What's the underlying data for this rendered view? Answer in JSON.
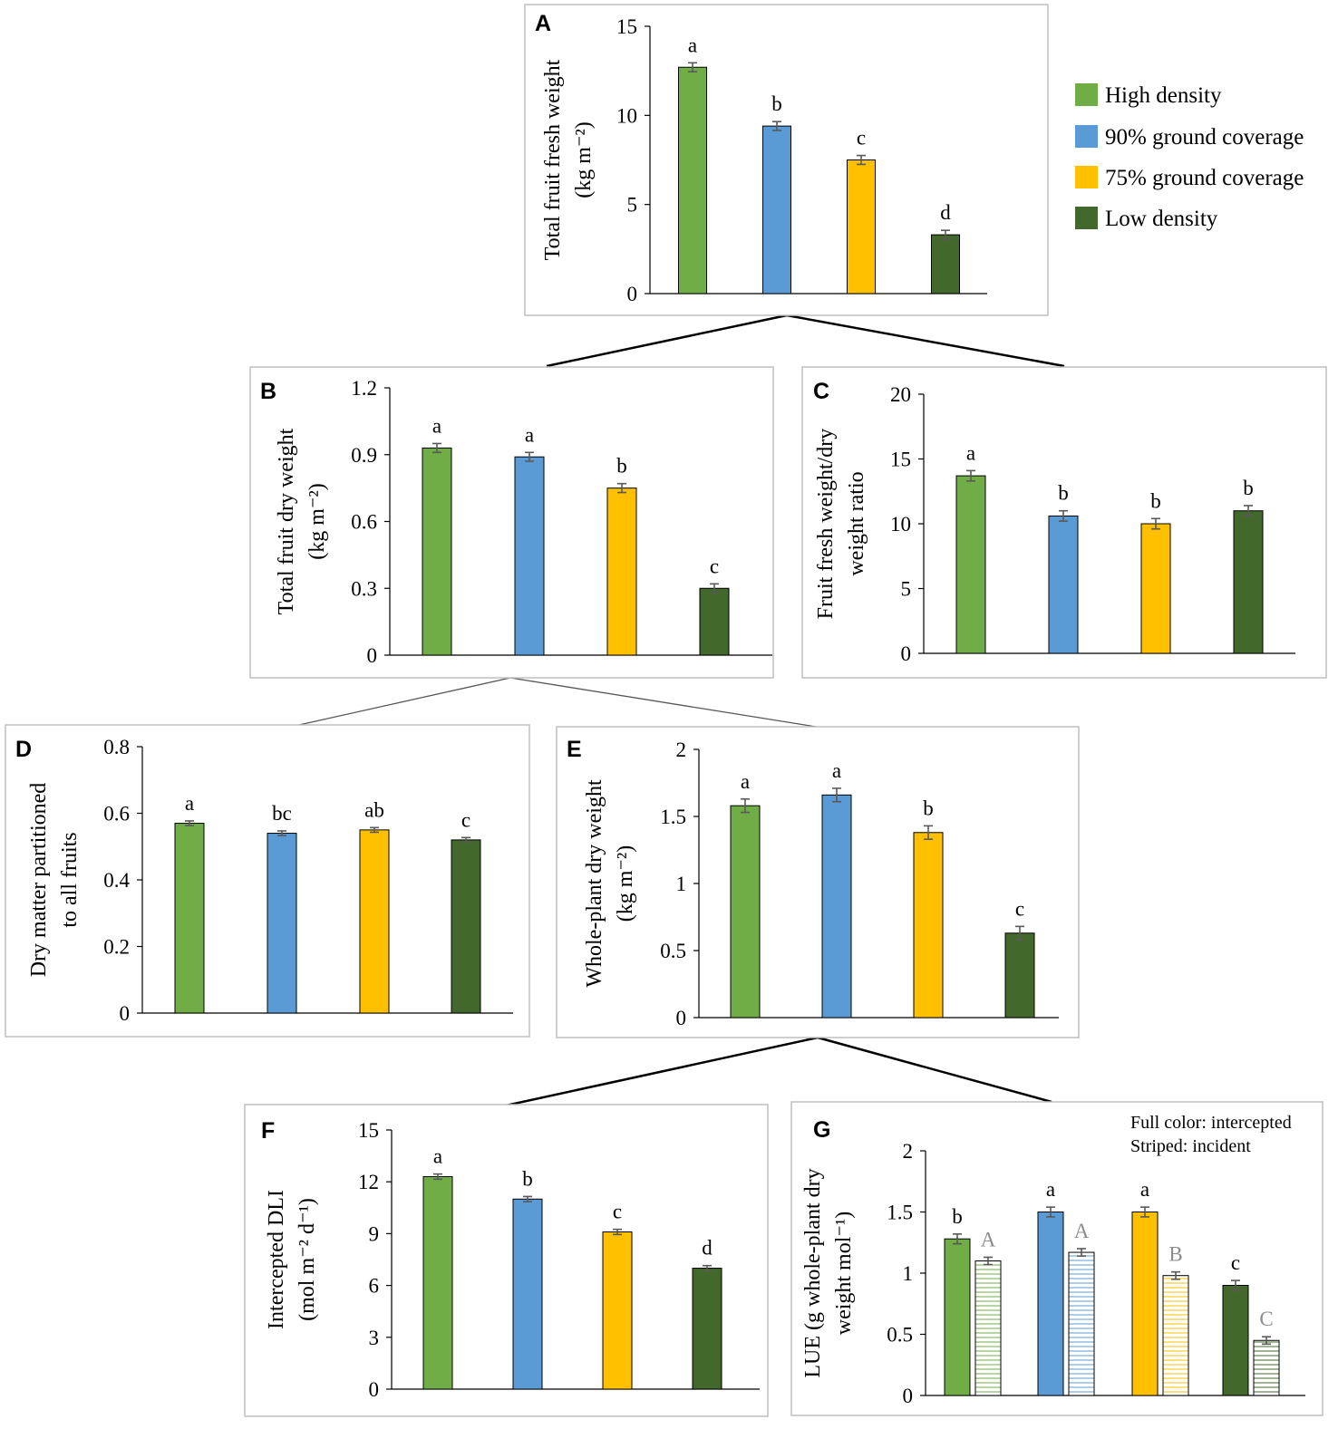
{
  "colors": {
    "high_density": "#70ad47",
    "ground_90": "#5b9bd5",
    "ground_75": "#ffc000",
    "low_density": "#43682b",
    "error_bar": "#595959",
    "axis": "#000000",
    "panel_border": "#bfbfbf",
    "letter_incident": "#8c8c8c"
  },
  "legend": {
    "items": [
      {
        "name": "High density",
        "color": "#70ad47"
      },
      {
        "name": "90% ground coverage",
        "color": "#5b9bd5"
      },
      {
        "name": "75% ground coverage",
        "color": "#ffc000"
      },
      {
        "name": "Low density",
        "color": "#43682b"
      }
    ]
  },
  "chart_data": [
    {
      "panel": "A",
      "type": "bar",
      "categories": [
        "High density",
        "90% ground coverage",
        "75% ground coverage",
        "Low density"
      ],
      "ylabel": [
        "Total fruit fresh weight",
        "(kg m⁻²)"
      ],
      "ylim": [
        0,
        15
      ],
      "yticks": [
        "0",
        "5",
        "10",
        "15"
      ],
      "ytick_values": [
        0,
        5,
        10,
        15
      ],
      "values": [
        12.7,
        9.4,
        7.5,
        3.3
      ],
      "errors": [
        0.25,
        0.25,
        0.25,
        0.25
      ],
      "letters": [
        "a",
        "b",
        "c",
        "d"
      ]
    },
    {
      "panel": "B",
      "type": "bar",
      "categories": [
        "High density",
        "90% ground coverage",
        "75% ground coverage",
        "Low density"
      ],
      "ylabel": [
        "Total fruit dry weight",
        "(kg m⁻²)"
      ],
      "ylim": [
        0,
        1.2
      ],
      "yticks": [
        "0",
        "0.3",
        "0.6",
        "0.9",
        "1.2"
      ],
      "ytick_values": [
        0,
        0.3,
        0.6,
        0.9,
        1.2
      ],
      "values": [
        0.93,
        0.89,
        0.75,
        0.3
      ],
      "errors": [
        0.02,
        0.02,
        0.02,
        0.02
      ],
      "letters": [
        "a",
        "a",
        "b",
        "c"
      ]
    },
    {
      "panel": "C",
      "type": "bar",
      "categories": [
        "High density",
        "90% ground coverage",
        "75% ground coverage",
        "Low density"
      ],
      "ylabel": [
        "Fruit fresh weight/dry",
        "weight ratio"
      ],
      "ylim": [
        0,
        20
      ],
      "yticks": [
        "0",
        "5",
        "10",
        "15",
        "20"
      ],
      "ytick_values": [
        0,
        5,
        10,
        15,
        20
      ],
      "values": [
        13.7,
        10.6,
        10.0,
        11.0
      ],
      "errors": [
        0.4,
        0.4,
        0.4,
        0.4
      ],
      "letters": [
        "a",
        "b",
        "b",
        "b"
      ]
    },
    {
      "panel": "D",
      "type": "bar",
      "categories": [
        "High density",
        "90% ground coverage",
        "75% ground coverage",
        "Low density"
      ],
      "ylabel": [
        "Dry matter partitioned",
        "to all fruits"
      ],
      "ylim": [
        0,
        0.8
      ],
      "yticks": [
        "0",
        "0.2",
        "0.4",
        "0.6",
        "0.8"
      ],
      "ytick_values": [
        0,
        0.2,
        0.4,
        0.6,
        0.8
      ],
      "values": [
        0.57,
        0.54,
        0.55,
        0.52
      ],
      "errors": [
        0.007,
        0.007,
        0.007,
        0.007
      ],
      "letters": [
        "a",
        "bc",
        "ab",
        "c"
      ]
    },
    {
      "panel": "E",
      "type": "bar",
      "categories": [
        "High density",
        "90% ground coverage",
        "75% ground coverage",
        "Low density"
      ],
      "ylabel": [
        "Whole-plant dry weight",
        "(kg m⁻²)"
      ],
      "ylim": [
        0,
        2
      ],
      "yticks": [
        "0",
        "0.5",
        "1",
        "1.5",
        "2"
      ],
      "ytick_values": [
        0,
        0.5,
        1,
        1.5,
        2
      ],
      "values": [
        1.58,
        1.66,
        1.38,
        0.63
      ],
      "errors": [
        0.05,
        0.05,
        0.05,
        0.05
      ],
      "letters": [
        "a",
        "a",
        "b",
        "c"
      ]
    },
    {
      "panel": "F",
      "type": "bar",
      "categories": [
        "High density",
        "90% ground coverage",
        "75% ground coverage",
        "Low density"
      ],
      "ylabel": [
        "Intercepted DLI",
        "(mol m⁻² d⁻¹)"
      ],
      "ylim": [
        0,
        15
      ],
      "yticks": [
        "0",
        "3",
        "6",
        "9",
        "12",
        "15"
      ],
      "ytick_values": [
        0,
        3,
        6,
        9,
        12,
        15
      ],
      "values": [
        12.3,
        11.0,
        9.1,
        7.0
      ],
      "errors": [
        0.15,
        0.15,
        0.15,
        0.15
      ],
      "letters": [
        "a",
        "b",
        "c",
        "d"
      ]
    },
    {
      "panel": "G",
      "type": "bar",
      "categories": [
        "High density",
        "90% ground coverage",
        "75% ground coverage",
        "Low density"
      ],
      "ylabel": [
        "LUE (g whole-plant dry",
        "weight mol⁻¹)"
      ],
      "ylim": [
        0,
        2
      ],
      "yticks": [
        "0",
        "0.5",
        "1",
        "1.5",
        "2"
      ],
      "ytick_values": [
        0,
        0.5,
        1,
        1.5,
        2
      ],
      "note": [
        "Full color: intercepted",
        "Striped: incident"
      ],
      "series": [
        {
          "name": "intercepted",
          "values": [
            1.28,
            1.5,
            1.5,
            0.9
          ],
          "errors": [
            0.04,
            0.04,
            0.04,
            0.04
          ],
          "letters": [
            "b",
            "a",
            "a",
            "c"
          ]
        },
        {
          "name": "incident",
          "values": [
            1.1,
            1.17,
            0.98,
            0.45
          ],
          "errors": [
            0.03,
            0.03,
            0.03,
            0.03
          ],
          "letters": [
            "A",
            "A",
            "B",
            "C"
          ]
        }
      ]
    }
  ]
}
